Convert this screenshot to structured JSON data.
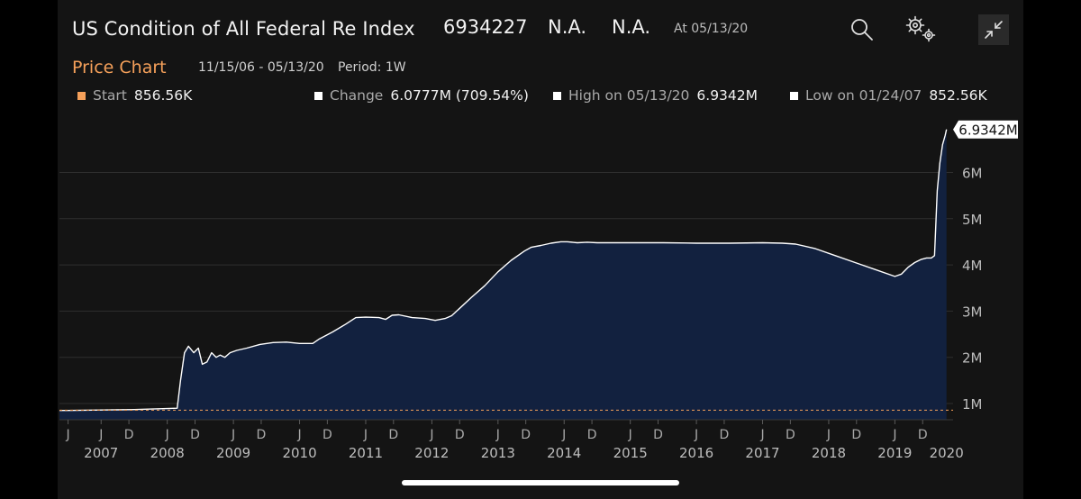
{
  "header": {
    "title": "US Condition of All Federal Re Index",
    "last_value": "6934227",
    "change": "N.A.",
    "change_pct": "N.A.",
    "as_of": "At 05/13/20",
    "icons": [
      "search-icon",
      "settings-icon",
      "minimize-icon"
    ]
  },
  "subheader": {
    "label": "Price Chart",
    "date_range": "11/15/06 - 05/13/20",
    "period": "Period: 1W"
  },
  "stats": {
    "start_label": "Start",
    "start_value": "856.56K",
    "change_label": "Change",
    "change_value": "6.0777M (709.54%)",
    "high_label": "High on 05/13/20",
    "high_value": "6.9342M",
    "low_label": "Low on 01/24/07",
    "low_value": "852.56K"
  },
  "colors": {
    "accent": "#f5a05a",
    "area_fill": "#12213f",
    "line": "#ffffff",
    "start_marker": "#f5a05a",
    "background": "#141414"
  },
  "chart_data": {
    "type": "area",
    "ylim": [
      0.65,
      7.1
    ],
    "y_unit": "M",
    "yticks": [
      {
        "value": 1,
        "label": "1M"
      },
      {
        "value": 2,
        "label": "2M"
      },
      {
        "value": 3,
        "label": "3M"
      },
      {
        "value": 4,
        "label": "4M"
      },
      {
        "value": 5,
        "label": "5M"
      },
      {
        "value": 6,
        "label": "6M"
      }
    ],
    "xlim": [
      2006.87,
      2020.38
    ],
    "month_ticks": [
      {
        "x": 2007.0,
        "label": "J"
      },
      {
        "x": 2007.5,
        "label": "J"
      },
      {
        "x": 2007.92,
        "label": "D"
      },
      {
        "x": 2008.5,
        "label": "J"
      },
      {
        "x": 2008.92,
        "label": "D"
      },
      {
        "x": 2009.5,
        "label": "J"
      },
      {
        "x": 2009.92,
        "label": "D"
      },
      {
        "x": 2010.5,
        "label": "J"
      },
      {
        "x": 2010.92,
        "label": "D"
      },
      {
        "x": 2011.5,
        "label": "J"
      },
      {
        "x": 2011.92,
        "label": "D"
      },
      {
        "x": 2012.5,
        "label": "J"
      },
      {
        "x": 2012.92,
        "label": "D"
      },
      {
        "x": 2013.5,
        "label": "J"
      },
      {
        "x": 2013.92,
        "label": "D"
      },
      {
        "x": 2014.5,
        "label": "J"
      },
      {
        "x": 2014.92,
        "label": "D"
      },
      {
        "x": 2015.5,
        "label": "J"
      },
      {
        "x": 2015.92,
        "label": "D"
      },
      {
        "x": 2016.5,
        "label": "J"
      },
      {
        "x": 2016.92,
        "label": "D"
      },
      {
        "x": 2017.5,
        "label": "J"
      },
      {
        "x": 2017.92,
        "label": "D"
      },
      {
        "x": 2018.5,
        "label": "J"
      },
      {
        "x": 2018.92,
        "label": "D"
      },
      {
        "x": 2019.5,
        "label": "J"
      },
      {
        "x": 2019.92,
        "label": "D"
      }
    ],
    "year_ticks": [
      {
        "x": 2007.5,
        "label": "2007"
      },
      {
        "x": 2008.5,
        "label": "2008"
      },
      {
        "x": 2009.5,
        "label": "2009"
      },
      {
        "x": 2010.5,
        "label": "2010"
      },
      {
        "x": 2011.5,
        "label": "2011"
      },
      {
        "x": 2012.5,
        "label": "2012"
      },
      {
        "x": 2013.5,
        "label": "2013"
      },
      {
        "x": 2014.5,
        "label": "2014"
      },
      {
        "x": 2015.5,
        "label": "2015"
      },
      {
        "x": 2016.5,
        "label": "2016"
      },
      {
        "x": 2017.5,
        "label": "2017"
      },
      {
        "x": 2018.5,
        "label": "2018"
      },
      {
        "x": 2019.5,
        "label": "2019"
      },
      {
        "x": 2020.28,
        "label": "2020"
      }
    ],
    "start_value": 0.8566,
    "last_label": "6.9342M",
    "series": [
      {
        "x": [
          2006.87,
          2007.0,
          2007.5,
          2008.0,
          2008.65,
          2008.7,
          2008.76,
          2008.82,
          2008.9,
          2008.97,
          2009.03,
          2009.1,
          2009.17,
          2009.24,
          2009.3,
          2009.37,
          2009.45,
          2009.55,
          2009.7,
          2009.9,
          2010.1,
          2010.3,
          2010.5,
          2010.7,
          2010.8,
          2011.0,
          2011.2,
          2011.35,
          2011.5,
          2011.7,
          2011.8,
          2011.9,
          2012.0,
          2012.2,
          2012.4,
          2012.55,
          2012.7,
          2012.8,
          2012.95,
          2013.1,
          2013.3,
          2013.5,
          2013.7,
          2013.9,
          2014.0,
          2014.15,
          2014.3,
          2014.45,
          2014.55,
          2014.7,
          2014.85,
          2015.0,
          2015.5,
          2016.0,
          2016.5,
          2017.0,
          2017.5,
          2017.8,
          2018.0,
          2018.3,
          2018.6,
          2018.9,
          2019.2,
          2019.5,
          2019.6,
          2019.7,
          2019.8,
          2019.9,
          2019.98,
          2020.05,
          2020.1,
          2020.14,
          2020.18,
          2020.22,
          2020.26,
          2020.28
        ],
        "y": [
          0.85,
          0.85,
          0.86,
          0.87,
          0.9,
          1.5,
          2.1,
          2.24,
          2.1,
          2.2,
          1.85,
          1.9,
          2.1,
          2.0,
          2.05,
          2.0,
          2.1,
          2.15,
          2.2,
          2.28,
          2.32,
          2.33,
          2.3,
          2.3,
          2.4,
          2.55,
          2.72,
          2.86,
          2.87,
          2.86,
          2.82,
          2.91,
          2.92,
          2.86,
          2.84,
          2.8,
          2.84,
          2.9,
          3.1,
          3.3,
          3.55,
          3.85,
          4.1,
          4.3,
          4.38,
          4.42,
          4.47,
          4.5,
          4.5,
          4.48,
          4.49,
          4.48,
          4.48,
          4.48,
          4.47,
          4.47,
          4.48,
          4.47,
          4.45,
          4.35,
          4.2,
          4.05,
          3.9,
          3.75,
          3.8,
          3.95,
          4.05,
          4.12,
          4.15,
          4.15,
          4.2,
          5.6,
          6.2,
          6.6,
          6.8,
          6.93
        ]
      }
    ]
  }
}
